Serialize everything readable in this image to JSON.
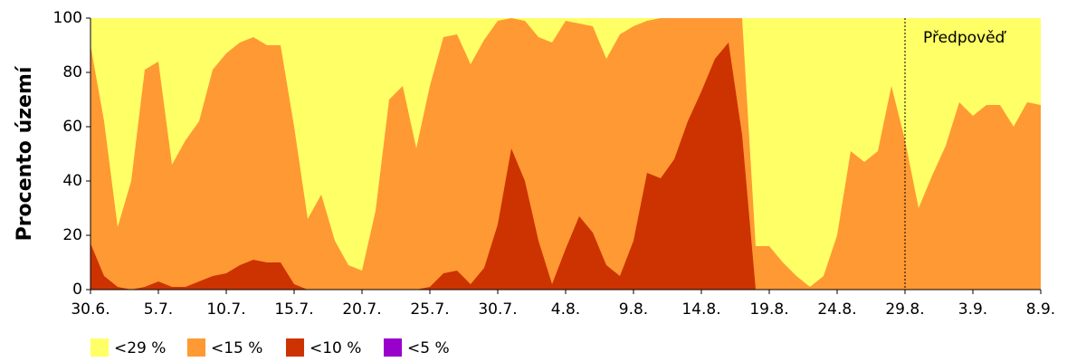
{
  "chart_data": {
    "type": "area",
    "y_label": "Procento území",
    "categories": [
      "30.6.",
      null,
      null,
      null,
      null,
      "5.7.",
      null,
      null,
      null,
      null,
      "10.7.",
      null,
      null,
      null,
      null,
      "15.7.",
      null,
      null,
      null,
      null,
      "20.7.",
      null,
      null,
      null,
      null,
      "25.7.",
      null,
      null,
      null,
      null,
      "30.7.",
      null,
      null,
      null,
      null,
      "4.8.",
      null,
      null,
      null,
      null,
      "9.8.",
      null,
      null,
      null,
      null,
      "14.8.",
      null,
      null,
      null,
      null,
      "19.8.",
      null,
      null,
      null,
      null,
      "24.8.",
      null,
      null,
      null,
      null,
      "29.8.",
      null,
      null,
      null,
      null,
      "3.9.",
      null,
      null,
      null,
      null,
      "8.9."
    ],
    "series": [
      {
        "name": "<29 %",
        "color": "#ffff66",
        "values": [
          100,
          100,
          100,
          100,
          100,
          100,
          100,
          100,
          100,
          100,
          100,
          100,
          100,
          100,
          100,
          100,
          100,
          100,
          100,
          100,
          100,
          100,
          100,
          100,
          100,
          100,
          100,
          100,
          100,
          100,
          100,
          100,
          100,
          100,
          100,
          100,
          100,
          100,
          100,
          100,
          100,
          100,
          100,
          100,
          100,
          100,
          100,
          100,
          100,
          100,
          100,
          100,
          100,
          100,
          100,
          100,
          100,
          100,
          100,
          100,
          100,
          100,
          100,
          100,
          100,
          100,
          100,
          100,
          100,
          100,
          100
        ]
      },
      {
        "name": "<15 %",
        "color": "#ff9933",
        "values": [
          90,
          62,
          23,
          40,
          81,
          84,
          46,
          55,
          62,
          81,
          87,
          91,
          93,
          90,
          90,
          60,
          26,
          35,
          18,
          9,
          7,
          29,
          70,
          75,
          52,
          75,
          93,
          94,
          83,
          92,
          99,
          100,
          99,
          93,
          91,
          99,
          98,
          97,
          85,
          94,
          97,
          99,
          100,
          100,
          100,
          100,
          100,
          100,
          100,
          16,
          16,
          10,
          5,
          1,
          5,
          20,
          51,
          47,
          51,
          75,
          55,
          30,
          42,
          53,
          69,
          64,
          68,
          68,
          60,
          69,
          68
        ]
      },
      {
        "name": "<10 %",
        "color": "#cc3300",
        "values": [
          17,
          5,
          1,
          0,
          1,
          3,
          1,
          1,
          3,
          5,
          6,
          9,
          11,
          10,
          10,
          2,
          0,
          0,
          0,
          0,
          0,
          0,
          0,
          0,
          0,
          1,
          6,
          7,
          2,
          8,
          24,
          52,
          40,
          18,
          2,
          15,
          27,
          21,
          9,
          5,
          18,
          43,
          41,
          48,
          62,
          73,
          85,
          91,
          57,
          0,
          0,
          0,
          0,
          0,
          0,
          0,
          0,
          0,
          0,
          0,
          0,
          0,
          0,
          0,
          0,
          0,
          0,
          0,
          0,
          0,
          0
        ]
      },
      {
        "name": "<5 %",
        "color": "#9900cc",
        "values": [
          0,
          0,
          0,
          0,
          0,
          0,
          0,
          0,
          0,
          0,
          0,
          0,
          0,
          0,
          0,
          0,
          0,
          0,
          0,
          0,
          0,
          0,
          0,
          0,
          0,
          0,
          0,
          0,
          0,
          0,
          0,
          0,
          0,
          0,
          0,
          0,
          0,
          0,
          0,
          0,
          0,
          0,
          0,
          0,
          0,
          0,
          0,
          0,
          0,
          0,
          0,
          0,
          0,
          0,
          0,
          0,
          0,
          0,
          0,
          0,
          0,
          0,
          0,
          0,
          0,
          0,
          0,
          0,
          0,
          0,
          0
        ]
      }
    ],
    "ylim": [
      0,
      100
    ],
    "yticks": [
      0,
      20,
      40,
      60,
      80,
      100
    ],
    "annotation": {
      "label": "Předpověď",
      "at": "29.8."
    }
  }
}
